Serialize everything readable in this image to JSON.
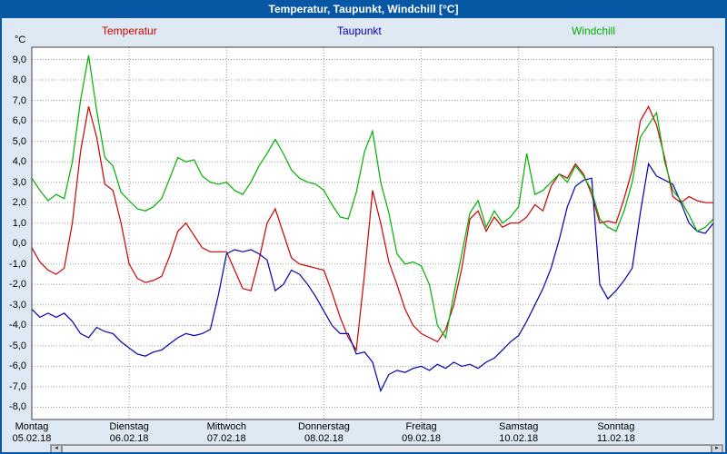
{
  "window": {
    "title": "Temperatur, Taupunkt, Windchill [°C]"
  },
  "colors": {
    "titlebar": "#0857a4",
    "background": "#dfe9f3",
    "plot_border": "#404040",
    "temperatur": "#cc0000",
    "taupunkt": "#0000b0",
    "windchill": "#00b000"
  },
  "legend": [
    {
      "label": "Temperatur",
      "color": "#cc0000"
    },
    {
      "label": "Taupunkt",
      "color": "#0000b0"
    },
    {
      "label": "Windchill",
      "color": "#00b000"
    }
  ],
  "axes": {
    "y_unit_label": "°C"
  },
  "scrollbar": {
    "left_arrow": "◄",
    "right_arrow": "►"
  },
  "chart_data": {
    "type": "line",
    "title": "Temperatur, Taupunkt, Windchill [°C]",
    "x_unit": "hours",
    "x_range": [
      0,
      168
    ],
    "x_step": 2,
    "ylim": [
      -8.6,
      9.6
    ],
    "grid": "dotted",
    "grid_color": "#9a9a9a",
    "y_ticks": [
      {
        "value": 9,
        "label": "9,0"
      },
      {
        "value": 8,
        "label": "8,0"
      },
      {
        "value": 7,
        "label": "7,0"
      },
      {
        "value": 6,
        "label": "6,0"
      },
      {
        "value": 5,
        "label": "5,0"
      },
      {
        "value": 4,
        "label": "4,0"
      },
      {
        "value": 3,
        "label": "3,0"
      },
      {
        "value": 2,
        "label": "2,0"
      },
      {
        "value": 1,
        "label": "1,0"
      },
      {
        "value": 0,
        "label": "0,0"
      },
      {
        "value": -1,
        "label": "-1,0"
      },
      {
        "value": -2,
        "label": "-2,0"
      },
      {
        "value": -3,
        "label": "-3,0"
      },
      {
        "value": -4,
        "label": "-4,0"
      },
      {
        "value": -5,
        "label": "-5,0"
      },
      {
        "value": -6,
        "label": "-6,0"
      },
      {
        "value": -7,
        "label": "-7,0"
      },
      {
        "value": -8,
        "label": "-8,0"
      }
    ],
    "days": [
      {
        "name": "Montag",
        "date": "05.02.18"
      },
      {
        "name": "Dienstag",
        "date": "06.02.18"
      },
      {
        "name": "Mittwoch",
        "date": "07.02.18"
      },
      {
        "name": "Donnerstag",
        "date": "08.02.18"
      },
      {
        "name": "Freitag",
        "date": "09.02.18"
      },
      {
        "name": "Samstag",
        "date": "10.02.18"
      },
      {
        "name": "Sonntag",
        "date": "11.02.18"
      }
    ],
    "series": [
      {
        "name": "Temperatur",
        "color": "#cc0000",
        "values": [
          -0.2,
          -0.9,
          -1.3,
          -1.5,
          -1.2,
          1.0,
          4.5,
          6.7,
          5.2,
          2.9,
          2.6,
          1.0,
          -1.0,
          -1.7,
          -1.9,
          -1.8,
          -1.6,
          -0.6,
          0.6,
          1.0,
          0.4,
          -0.2,
          -0.4,
          -0.4,
          -0.4,
          -1.3,
          -2.2,
          -2.3,
          -0.8,
          1.0,
          1.7,
          0.5,
          -0.7,
          -1.0,
          -1.1,
          -1.2,
          -1.3,
          -2.4,
          -3.6,
          -4.6,
          -5.2,
          -1.5,
          2.6,
          1.0,
          -0.9,
          -2.0,
          -3.2,
          -4.0,
          -4.4,
          -4.6,
          -4.8,
          -4.2,
          -3.0,
          -1.2,
          1.2,
          1.6,
          0.6,
          1.3,
          0.8,
          1.0,
          1.0,
          1.3,
          1.9,
          1.6,
          2.8,
          3.4,
          3.2,
          3.9,
          3.4,
          2.4,
          1.0,
          1.1,
          1.0,
          2.2,
          3.6,
          6.0,
          6.7,
          5.8,
          4.2,
          2.3,
          2.0,
          2.3,
          2.1,
          2.0,
          2.0
        ]
      },
      {
        "name": "Taupunkt",
        "color": "#0000b0",
        "values": [
          -3.2,
          -3.6,
          -3.4,
          -3.6,
          -3.4,
          -3.8,
          -4.4,
          -4.6,
          -4.1,
          -4.3,
          -4.4,
          -4.8,
          -5.1,
          -5.4,
          -5.5,
          -5.3,
          -5.2,
          -4.9,
          -4.6,
          -4.4,
          -4.5,
          -4.4,
          -4.2,
          -2.5,
          -0.5,
          -0.3,
          -0.4,
          -0.3,
          -0.5,
          -0.8,
          -2.3,
          -2.0,
          -1.3,
          -1.5,
          -2.0,
          -2.6,
          -3.3,
          -4.0,
          -4.4,
          -4.4,
          -5.4,
          -5.3,
          -5.8,
          -7.2,
          -6.4,
          -6.2,
          -6.3,
          -6.1,
          -6.0,
          -6.2,
          -5.9,
          -6.1,
          -5.8,
          -6.0,
          -5.9,
          -6.1,
          -5.8,
          -5.6,
          -5.2,
          -4.8,
          -4.5,
          -3.8,
          -3.0,
          -2.2,
          -1.2,
          0.2,
          1.8,
          2.8,
          3.1,
          3.2,
          -2.0,
          -2.7,
          -2.3,
          -1.8,
          -1.2,
          1.5,
          3.9,
          3.3,
          3.1,
          2.9,
          2.0,
          1.0,
          0.6,
          0.5,
          1.0
        ]
      },
      {
        "name": "Windchill",
        "color": "#00b000",
        "values": [
          3.2,
          2.6,
          2.1,
          2.4,
          2.2,
          4.0,
          7.0,
          9.2,
          6.5,
          4.2,
          3.8,
          2.5,
          2.1,
          1.7,
          1.6,
          1.8,
          2.2,
          3.2,
          4.2,
          4.0,
          4.1,
          3.3,
          3.0,
          2.9,
          3.0,
          2.6,
          2.4,
          3.0,
          3.8,
          4.4,
          5.1,
          4.4,
          3.6,
          3.2,
          3.0,
          2.9,
          2.6,
          1.9,
          1.3,
          1.2,
          2.5,
          4.5,
          5.5,
          3.0,
          1.5,
          -0.5,
          -1.0,
          -0.9,
          -1.1,
          -2.0,
          -4.0,
          -4.6,
          -2.5,
          -0.5,
          1.5,
          2.1,
          0.8,
          1.6,
          1.0,
          1.3,
          1.8,
          4.4,
          2.4,
          2.6,
          3.0,
          3.4,
          3.0,
          3.8,
          3.3,
          2.6,
          1.2,
          0.8,
          0.6,
          1.6,
          3.0,
          5.2,
          5.8,
          6.4,
          4.0,
          2.6,
          2.1,
          1.4,
          0.6,
          0.8,
          1.2
        ]
      }
    ]
  }
}
